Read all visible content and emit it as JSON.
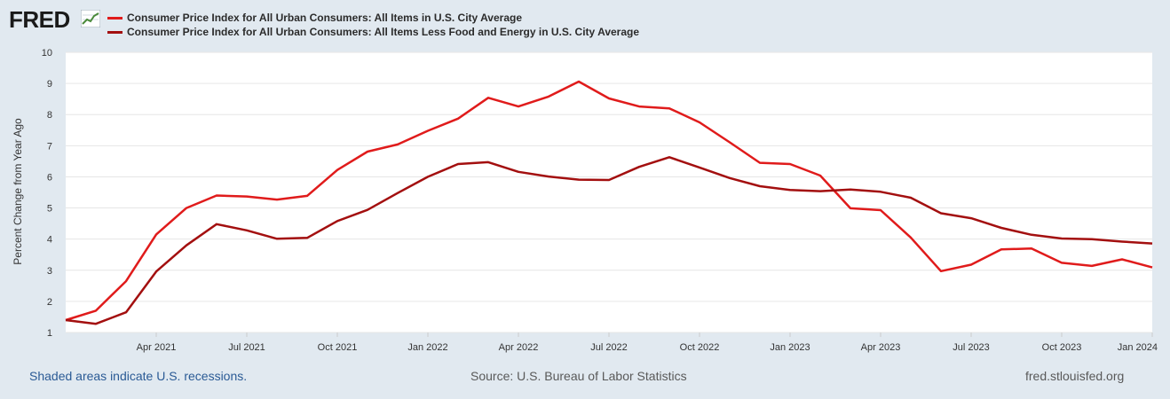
{
  "header": {
    "logo_text": "FRED",
    "logo_icon": "graph-line-icon"
  },
  "colors": {
    "background": "#e1e9f0",
    "plot_background": "#ffffff",
    "series_all_items": "#e01b1b",
    "series_core": "#a30f0f",
    "gridline": "#e6e6e6",
    "footer_link": "#2a5a95"
  },
  "legend": {
    "items": [
      {
        "label": "Consumer Price Index for All Urban Consumers: All Items in U.S. City Average",
        "color": "#e01b1b"
      },
      {
        "label": "Consumer Price Index for All Urban Consumers: All Items Less Food and Energy in U.S. City Average",
        "color": "#a30f0f"
      }
    ]
  },
  "chart_data": {
    "type": "line",
    "ylabel": "Percent Change from Year Ago",
    "ylim": [
      1,
      10
    ],
    "yticks": [
      1,
      2,
      3,
      4,
      5,
      6,
      7,
      8,
      9,
      10
    ],
    "grid": true,
    "legend_position": "top-left",
    "x": [
      "2021-01",
      "2021-02",
      "2021-03",
      "2021-04",
      "2021-05",
      "2021-06",
      "2021-07",
      "2021-08",
      "2021-09",
      "2021-10",
      "2021-11",
      "2021-12",
      "2022-01",
      "2022-02",
      "2022-03",
      "2022-04",
      "2022-05",
      "2022-06",
      "2022-07",
      "2022-08",
      "2022-09",
      "2022-10",
      "2022-11",
      "2022-12",
      "2023-01",
      "2023-02",
      "2023-03",
      "2023-04",
      "2023-05",
      "2023-06",
      "2023-07",
      "2023-08",
      "2023-09",
      "2023-10",
      "2023-11",
      "2023-12",
      "2024-01"
    ],
    "xtick_labels": [
      {
        "x": "2021-04",
        "label": "Apr 2021"
      },
      {
        "x": "2021-07",
        "label": "Jul 2021"
      },
      {
        "x": "2021-10",
        "label": "Oct 2021"
      },
      {
        "x": "2022-01",
        "label": "Jan 2022"
      },
      {
        "x": "2022-04",
        "label": "Apr 2022"
      },
      {
        "x": "2022-07",
        "label": "Jul 2022"
      },
      {
        "x": "2022-10",
        "label": "Oct 2022"
      },
      {
        "x": "2023-01",
        "label": "Jan 2023"
      },
      {
        "x": "2023-04",
        "label": "Apr 2023"
      },
      {
        "x": "2023-07",
        "label": "Jul 2023"
      },
      {
        "x": "2023-10",
        "label": "Oct 2023"
      },
      {
        "x": "2024-01",
        "label": "Jan 2024"
      }
    ],
    "series": [
      {
        "name": "Consumer Price Index for All Urban Consumers: All Items in U.S. City Average",
        "color": "#e01b1b",
        "values": [
          1.4,
          1.7,
          2.65,
          4.15,
          5.0,
          5.4,
          5.37,
          5.27,
          5.39,
          6.22,
          6.81,
          7.04,
          7.48,
          7.87,
          8.54,
          8.26,
          8.58,
          9.06,
          8.52,
          8.26,
          8.2,
          7.75,
          7.11,
          6.45,
          6.41,
          6.04,
          4.99,
          4.93,
          4.05,
          2.97,
          3.18,
          3.67,
          3.7,
          3.24,
          3.14,
          3.35,
          3.09
        ]
      },
      {
        "name": "Consumer Price Index for All Urban Consumers: All Items Less Food and Energy in U.S. City Average",
        "color": "#a30f0f",
        "values": [
          1.4,
          1.28,
          1.65,
          2.96,
          3.8,
          4.48,
          4.28,
          4.01,
          4.04,
          4.58,
          4.94,
          5.48,
          6.0,
          6.41,
          6.47,
          6.16,
          6.01,
          5.91,
          5.9,
          6.32,
          6.63,
          6.3,
          5.96,
          5.7,
          5.58,
          5.54,
          5.59,
          5.52,
          5.33,
          4.83,
          4.67,
          4.36,
          4.14,
          4.02,
          4.0,
          3.92,
          3.86
        ]
      }
    ]
  },
  "footer": {
    "recession_note": "Shaded areas indicate U.S. recessions.",
    "source": "Source: U.S. Bureau of Labor Statistics",
    "site": "fred.stlouisfed.org"
  }
}
